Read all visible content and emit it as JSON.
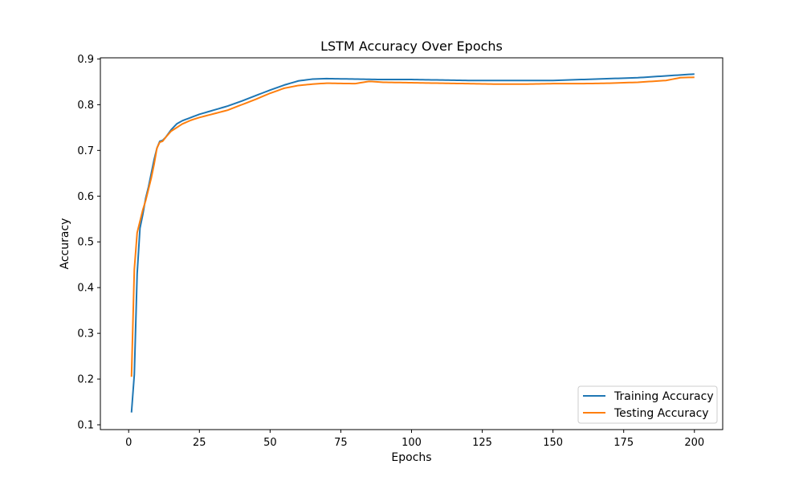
{
  "chart_data": {
    "type": "line",
    "title": "LSTM Accuracy Over Epochs",
    "xlabel": "Epochs",
    "ylabel": "Accuracy",
    "xlim": [
      -10,
      210
    ],
    "ylim": [
      0.0895,
      0.9025
    ],
    "xticks": [
      0,
      25,
      50,
      75,
      100,
      125,
      150,
      175,
      200
    ],
    "yticks": [
      0.1,
      0.2,
      0.3,
      0.4,
      0.5,
      0.6,
      0.7,
      0.8,
      0.9
    ],
    "grid": false,
    "legend_position": "lower-right",
    "series": [
      {
        "name": "Training Accuracy",
        "color": "#1f77b4",
        "anchors": [
          [
            1,
            0.127
          ],
          [
            2,
            0.21
          ],
          [
            3,
            0.43
          ],
          [
            4,
            0.53
          ],
          [
            5,
            0.56
          ],
          [
            6,
            0.595
          ],
          [
            7,
            0.62
          ],
          [
            8,
            0.65
          ],
          [
            9,
            0.68
          ],
          [
            10,
            0.705
          ],
          [
            11,
            0.72
          ],
          [
            12,
            0.722
          ],
          [
            13,
            0.728
          ],
          [
            15,
            0.745
          ],
          [
            17,
            0.758
          ],
          [
            19,
            0.765
          ],
          [
            22,
            0.772
          ],
          [
            25,
            0.779
          ],
          [
            30,
            0.788
          ],
          [
            35,
            0.797
          ],
          [
            40,
            0.808
          ],
          [
            45,
            0.82
          ],
          [
            50,
            0.832
          ],
          [
            55,
            0.843
          ],
          [
            60,
            0.852
          ],
          [
            65,
            0.856
          ],
          [
            70,
            0.857
          ],
          [
            80,
            0.856
          ],
          [
            90,
            0.855
          ],
          [
            100,
            0.855
          ],
          [
            110,
            0.854
          ],
          [
            120,
            0.853
          ],
          [
            130,
            0.853
          ],
          [
            140,
            0.853
          ],
          [
            150,
            0.853
          ],
          [
            160,
            0.855
          ],
          [
            170,
            0.857
          ],
          [
            180,
            0.859
          ],
          [
            190,
            0.863
          ],
          [
            200,
            0.867
          ]
        ]
      },
      {
        "name": "Testing Accuracy",
        "color": "#ff7f0e",
        "anchors": [
          [
            1,
            0.205
          ],
          [
            2,
            0.44
          ],
          [
            3,
            0.52
          ],
          [
            4,
            0.545
          ],
          [
            5,
            0.57
          ],
          [
            6,
            0.59
          ],
          [
            7,
            0.615
          ],
          [
            8,
            0.64
          ],
          [
            9,
            0.67
          ],
          [
            10,
            0.705
          ],
          [
            11,
            0.718
          ],
          [
            12,
            0.72
          ],
          [
            13,
            0.728
          ],
          [
            15,
            0.742
          ],
          [
            17,
            0.75
          ],
          [
            19,
            0.758
          ],
          [
            22,
            0.766
          ],
          [
            25,
            0.772
          ],
          [
            30,
            0.78
          ],
          [
            35,
            0.788
          ],
          [
            40,
            0.8
          ],
          [
            45,
            0.812
          ],
          [
            50,
            0.825
          ],
          [
            55,
            0.836
          ],
          [
            60,
            0.842
          ],
          [
            65,
            0.845
          ],
          [
            70,
            0.847
          ],
          [
            80,
            0.846
          ],
          [
            85,
            0.851
          ],
          [
            90,
            0.849
          ],
          [
            100,
            0.848
          ],
          [
            110,
            0.847
          ],
          [
            120,
            0.846
          ],
          [
            130,
            0.845
          ],
          [
            140,
            0.845
          ],
          [
            150,
            0.846
          ],
          [
            160,
            0.846
          ],
          [
            170,
            0.847
          ],
          [
            180,
            0.849
          ],
          [
            190,
            0.853
          ],
          [
            195,
            0.859
          ],
          [
            200,
            0.86
          ]
        ]
      }
    ]
  }
}
